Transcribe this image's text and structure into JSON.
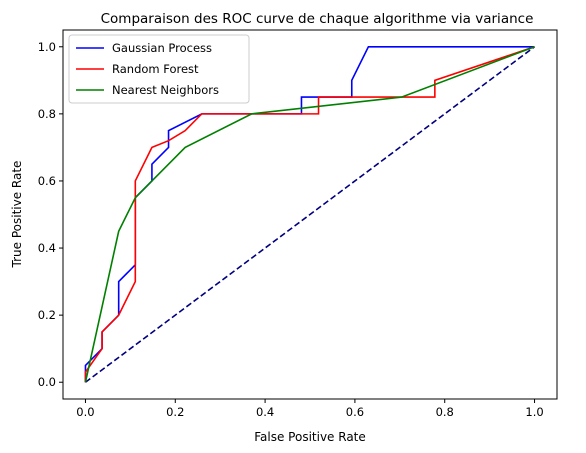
{
  "chart_data": {
    "type": "line",
    "title": "Comparaison des ROC curve de chaque algorithme via variance",
    "xlabel": "False Positive Rate",
    "ylabel": "True Positive Rate",
    "xlim": [
      -0.05,
      1.05
    ],
    "ylim": [
      -0.05,
      1.05
    ],
    "xticks": [
      0.0,
      0.2,
      0.4,
      0.6,
      0.8,
      1.0
    ],
    "yticks": [
      0.0,
      0.2,
      0.4,
      0.6,
      0.8,
      1.0
    ],
    "xtick_labels": [
      "0.0",
      "0.2",
      "0.4",
      "0.6",
      "0.8",
      "1.0"
    ],
    "ytick_labels": [
      "0.0",
      "0.2",
      "0.4",
      "0.6",
      "0.8",
      "1.0"
    ],
    "grid": false,
    "legend_position": "upper-left",
    "series": [
      {
        "name": "Gaussian Process",
        "color": "#0000ff",
        "x": [
          0.0,
          0.0,
          0.0,
          0.037,
          0.037,
          0.074,
          0.074,
          0.111,
          0.111,
          0.111,
          0.148,
          0.148,
          0.185,
          0.185,
          0.259,
          0.481,
          0.481,
          0.593,
          0.593,
          0.63,
          1.0
        ],
        "y": [
          0.0,
          0.05,
          0.05,
          0.1,
          0.15,
          0.2,
          0.3,
          0.35,
          0.5,
          0.55,
          0.6,
          0.65,
          0.7,
          0.75,
          0.8,
          0.8,
          0.85,
          0.85,
          0.9,
          1.0,
          1.0
        ]
      },
      {
        "name": "Random Forest",
        "color": "#ff0000",
        "x": [
          0.0,
          0.0,
          0.037,
          0.037,
          0.074,
          0.111,
          0.111,
          0.148,
          0.185,
          0.222,
          0.259,
          0.519,
          0.519,
          0.778,
          0.778,
          1.0
        ],
        "y": [
          0.0,
          0.03,
          0.1,
          0.15,
          0.2,
          0.3,
          0.6,
          0.7,
          0.72,
          0.75,
          0.8,
          0.8,
          0.85,
          0.85,
          0.9,
          1.0
        ]
      },
      {
        "name": "Nearest Neighbors",
        "color": "#008000",
        "x": [
          0.0,
          0.074,
          0.111,
          0.222,
          0.37,
          0.704,
          1.0
        ],
        "y": [
          0.0,
          0.45,
          0.55,
          0.7,
          0.8,
          0.85,
          1.0
        ]
      }
    ],
    "reference_line": {
      "color": "#000080",
      "style": "dashed",
      "x": [
        0.0,
        1.0
      ],
      "y": [
        0.0,
        1.0
      ]
    }
  }
}
